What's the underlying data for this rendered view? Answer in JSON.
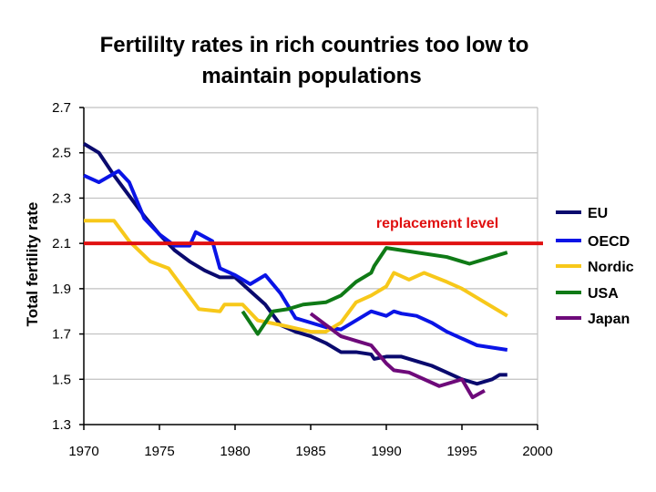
{
  "chart_data": {
    "type": "line",
    "title": "Fertililty rates in rich countries too low to maintain populations",
    "title_lines": [
      "Fertililty rates in rich countries too low to",
      "maintain populations"
    ],
    "ylabel": "Total fertility rate",
    "xlabel": "",
    "xlim": [
      1970,
      2000
    ],
    "ylim": [
      1.3,
      2.7
    ],
    "xticks": [
      1970,
      1975,
      1980,
      1985,
      1990,
      1995,
      2000
    ],
    "yticks": [
      "1.3",
      "1.5",
      "1.7",
      "1.9",
      "2.1",
      "2.3",
      "2.5",
      "2.7"
    ],
    "grid": "horizontal",
    "legend_position": "right",
    "reference_line": {
      "label": "replacement level",
      "value": 2.1,
      "color": "#e01010"
    },
    "series": [
      {
        "name": "EU",
        "color": "#0a0a6e",
        "points": [
          [
            1970,
            2.54
          ],
          [
            1971,
            2.5
          ],
          [
            1972,
            2.4
          ],
          [
            1973,
            2.31
          ],
          [
            1974,
            2.22
          ],
          [
            1975,
            2.14
          ],
          [
            1976,
            2.07
          ],
          [
            1977,
            2.02
          ],
          [
            1978,
            1.98
          ],
          [
            1979,
            1.95
          ],
          [
            1980,
            1.95
          ],
          [
            1981,
            1.89
          ],
          [
            1982,
            1.83
          ],
          [
            1983,
            1.74
          ],
          [
            1984,
            1.71
          ],
          [
            1985,
            1.69
          ],
          [
            1986,
            1.66
          ],
          [
            1987,
            1.62
          ],
          [
            1988,
            1.62
          ],
          [
            1989,
            1.61
          ],
          [
            1989.2,
            1.59
          ],
          [
            1990,
            1.6
          ],
          [
            1991,
            1.6
          ],
          [
            1992,
            1.58
          ],
          [
            1993,
            1.56
          ],
          [
            1994,
            1.53
          ],
          [
            1995,
            1.5
          ],
          [
            1996,
            1.48
          ],
          [
            1997,
            1.5
          ],
          [
            1997.5,
            1.52
          ],
          [
            1998,
            1.52
          ]
        ]
      },
      {
        "name": "OECD",
        "color": "#0a14e6",
        "points": [
          [
            1970,
            2.4
          ],
          [
            1971,
            2.37
          ],
          [
            1972.3,
            2.42
          ],
          [
            1973,
            2.37
          ],
          [
            1974,
            2.21
          ],
          [
            1975,
            2.14
          ],
          [
            1976,
            2.09
          ],
          [
            1977,
            2.09
          ],
          [
            1977.4,
            2.15
          ],
          [
            1978.5,
            2.11
          ],
          [
            1979,
            1.99
          ],
          [
            1980,
            1.96
          ],
          [
            1981,
            1.92
          ],
          [
            1982,
            1.96
          ],
          [
            1983,
            1.88
          ],
          [
            1984,
            1.77
          ],
          [
            1985,
            1.75
          ],
          [
            1986,
            1.73
          ],
          [
            1987,
            1.72
          ],
          [
            1988,
            1.76
          ],
          [
            1989,
            1.8
          ],
          [
            1990,
            1.78
          ],
          [
            1990.5,
            1.8
          ],
          [
            1991,
            1.79
          ],
          [
            1992,
            1.78
          ],
          [
            1993,
            1.75
          ],
          [
            1994,
            1.71
          ],
          [
            1995,
            1.68
          ],
          [
            1996,
            1.65
          ],
          [
            1997,
            1.64
          ],
          [
            1998,
            1.63
          ]
        ]
      },
      {
        "name": "Nordic",
        "color": "#f7c81a",
        "points": [
          [
            1970,
            2.2
          ],
          [
            1971,
            2.2
          ],
          [
            1972,
            2.2
          ],
          [
            1973,
            2.11
          ],
          [
            1974.4,
            2.02
          ],
          [
            1975.6,
            1.99
          ],
          [
            1977.6,
            1.81
          ],
          [
            1979,
            1.8
          ],
          [
            1979.3,
            1.83
          ],
          [
            1980.5,
            1.83
          ],
          [
            1981.5,
            1.76
          ],
          [
            1983,
            1.74
          ],
          [
            1985,
            1.71
          ],
          [
            1986,
            1.71
          ],
          [
            1987,
            1.75
          ],
          [
            1988,
            1.84
          ],
          [
            1989,
            1.87
          ],
          [
            1990,
            1.91
          ],
          [
            1990.5,
            1.97
          ],
          [
            1991.5,
            1.94
          ],
          [
            1992.5,
            1.97
          ],
          [
            1994,
            1.93
          ],
          [
            1995,
            1.9
          ],
          [
            1996,
            1.86
          ],
          [
            1997,
            1.82
          ],
          [
            1998,
            1.78
          ]
        ]
      },
      {
        "name": "USA",
        "color": "#0f7a16",
        "points": [
          [
            1980.5,
            1.8
          ],
          [
            1981.5,
            1.7
          ],
          [
            1982.5,
            1.8
          ],
          [
            1983.5,
            1.81
          ],
          [
            1984.5,
            1.83
          ],
          [
            1986,
            1.84
          ],
          [
            1987,
            1.87
          ],
          [
            1988,
            1.93
          ],
          [
            1989,
            1.97
          ],
          [
            1989.2,
            2.0
          ],
          [
            1990,
            2.08
          ],
          [
            1992,
            2.06
          ],
          [
            1994,
            2.04
          ],
          [
            1995.5,
            2.01
          ],
          [
            1998,
            2.06
          ]
        ]
      },
      {
        "name": "Japan",
        "color": "#6e0a7a",
        "points": [
          [
            1985,
            1.79
          ],
          [
            1986,
            1.74
          ],
          [
            1987,
            1.69
          ],
          [
            1988,
            1.67
          ],
          [
            1989,
            1.65
          ],
          [
            1990,
            1.57
          ],
          [
            1990.5,
            1.54
          ],
          [
            1991.5,
            1.53
          ],
          [
            1993.5,
            1.47
          ],
          [
            1995,
            1.5
          ],
          [
            1995.7,
            1.42
          ],
          [
            1996.5,
            1.45
          ]
        ]
      }
    ]
  }
}
